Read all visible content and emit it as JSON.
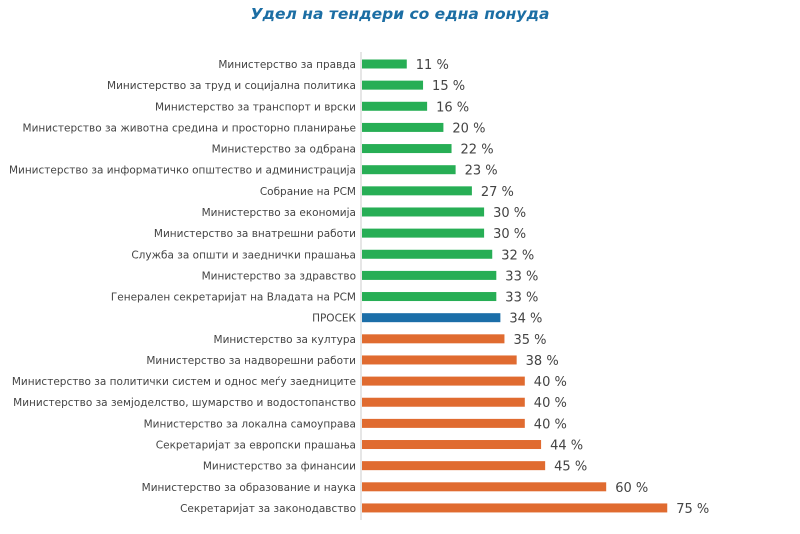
{
  "chart_data": {
    "type": "bar",
    "orientation": "horizontal",
    "title": "Удел на тендери со една понуда",
    "xlabel": "",
    "ylabel": "",
    "xlim": [
      0,
      100
    ],
    "grid": false,
    "legend": "none",
    "value_suffix": " %",
    "colors": {
      "below_average": "#27ae55",
      "average": "#1b6ea8",
      "above_average": "#e06b30",
      "axis": "#dddddd"
    },
    "categories": [
      "Министерство за правда",
      "Министерство за труд и социјална политика",
      "Министерство за транспорт и врски",
      "Министерство за животна средина и просторно планирање",
      "Министерство за одбрана",
      "Министерство за информатичко општество и администрација",
      "Собрание на РСМ",
      "Министерство за економија",
      "Министерство за внатрешни работи",
      "Служба за општи и заеднички прашања",
      "Министерство за здравство",
      "Генерален секретаријат на Владата на РСМ",
      "ПРОСЕК",
      "Министерство за култура",
      "Министерство за надворешни работи",
      "Министерство за политички систем и однос меѓу заедниците",
      "Министерство за земјоделство, шумарство и водостопанство",
      "Министерство за локална самоуправа",
      "Секретаријат за европски прашања",
      "Министерство за финансии",
      "Министерство за образование и наука",
      "Секретаријат за законодавство"
    ],
    "values": [
      11,
      15,
      16,
      20,
      22,
      23,
      27,
      30,
      30,
      32,
      33,
      33,
      34,
      35,
      38,
      40,
      40,
      40,
      44,
      45,
      60,
      75
    ],
    "labels": [
      "11 %",
      "15 %",
      "16 %",
      "20 %",
      "22 %",
      "23 %",
      "27 %",
      "30 %",
      "30 %",
      "32 %",
      "33 %",
      "33 %",
      "34 %",
      "35 %",
      "38 %",
      "40 %",
      "40 %",
      "40 %",
      "44 %",
      "45 %",
      "60 %",
      "75 %"
    ],
    "groups": [
      "below_average",
      "below_average",
      "below_average",
      "below_average",
      "below_average",
      "below_average",
      "below_average",
      "below_average",
      "below_average",
      "below_average",
      "below_average",
      "below_average",
      "average",
      "above_average",
      "above_average",
      "above_average",
      "above_average",
      "above_average",
      "above_average",
      "above_average",
      "above_average",
      "above_average"
    ]
  }
}
